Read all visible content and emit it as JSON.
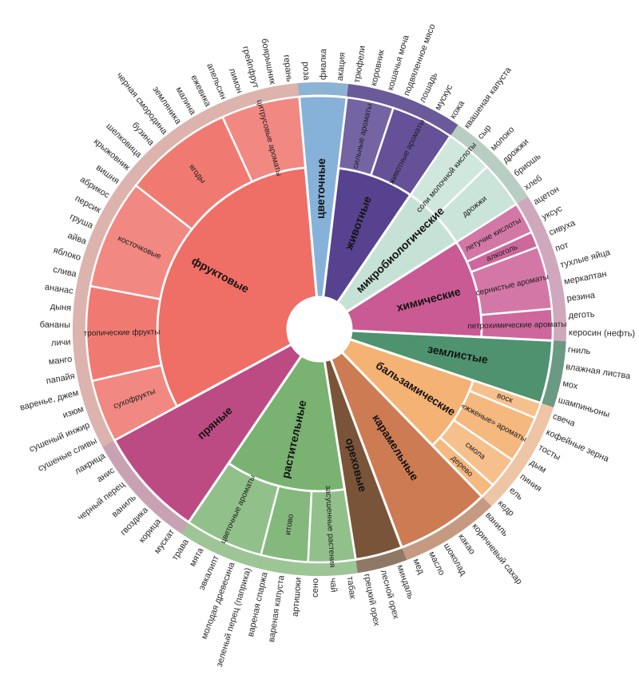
{
  "colors": {
    "background": "#ffffff",
    "hole": "#ffffff",
    "rim": "#c2a9b5"
  },
  "wheel": {
    "categories": [
      {
        "name": "цветочные",
        "color": "#86b2da",
        "rim": "#8db3d4",
        "subs": [],
        "leaves": [
          "роза",
          "фиалка",
          "акация"
        ]
      },
      {
        "name": "животные",
        "color": "#56428f",
        "rim": "#6a5a99",
        "subs": [
          {
            "name": "сильные ароматы",
            "leaves": [
              "трюфели",
              "коровник",
              "кошачья моча"
            ]
          },
          {
            "name": "животные ароматы",
            "leaves": [
              "подвяленное мясо",
              "лошадь",
              "мускус",
              "кожа"
            ]
          }
        ],
        "leaves": []
      },
      {
        "name": "микробиологические",
        "color": "#c6e2d6",
        "rim": "#b8cec2",
        "subs": [
          {
            "name": "соли молочной кислоты",
            "leaves": [
              "квашеная капуста",
              "сыр",
              "молоко"
            ]
          },
          {
            "name": "дрожжи",
            "leaves": [
              "дрожжи",
              "бриошь",
              "хлеб"
            ]
          }
        ],
        "leaves": []
      },
      {
        "name": "химические",
        "color": "#c95a93",
        "rim": "#cfa8bd",
        "subs": [
          {
            "name": "летучие кислоты",
            "leaves": [
              "ацетон",
              "уксус"
            ]
          },
          {
            "name": "алкоголь",
            "leaves": [
              "сивуха"
            ]
          },
          {
            "name": "сернистые ароматы",
            "leaves": [
              "пот",
              "тухлые яйца",
              "меркаптан",
              "резина"
            ]
          },
          {
            "name": "петрохими­ческие аро­маты",
            "leaves": [
              "деготь",
              "керосин (нефть)"
            ]
          }
        ],
        "leaves": []
      },
      {
        "name": "землистые",
        "color": "#4e9270",
        "rim": "#6a9a82",
        "subs": [],
        "leaves": [
          "гниль",
          "влажная листва",
          "мох",
          "шампиньоны"
        ]
      },
      {
        "name": "бальзамические",
        "color": "#f4b274",
        "rim": "#eec5a5",
        "subs": [
          {
            "name": "воск",
            "leaves": [
              "свеча"
            ]
          },
          {
            "name": "«жженые» ароматы",
            "leaves": [
              "кофейные зерна",
              "тосты",
              "дым"
            ]
          },
          {
            "name": "смола",
            "leaves": [
              "пиния",
              "ель"
            ]
          },
          {
            "name": "дерево",
            "leaves": [
              "кедр"
            ]
          }
        ],
        "leaves": []
      },
      {
        "name": "карамельные",
        "color": "#cd7b52",
        "rim": "#c59a80",
        "subs": [],
        "leaves": [
          "ваниль",
          "коричневый сахар",
          "какао",
          "шоколад",
          "масло",
          "мед"
        ]
      },
      {
        "name": "ореховые",
        "color": "#7a5438",
        "rim": "#8f7866",
        "subs": [],
        "leaves": [
          "миндаль",
          "лесной орех",
          "грецкий орех"
        ]
      },
      {
        "name": "растительные",
        "color": "#79b271",
        "rim": "#9ec596",
        "subs": [
          {
            "name": "засушен­ные расте­ния",
            "leaves": [
              "табак",
              "чай",
              "сено"
            ]
          },
          {
            "name": "итово",
            "leaves": [
              "артишоки",
              "вареная капуста",
              "вареная спаржа"
            ]
          },
          {
            "name": "цветочные ароматы",
            "leaves": [
              "зеленый перец (паприка)",
              "молодая древесина",
              "эвкалипт",
              "мята",
              "трава"
            ]
          }
        ],
        "leaves": []
      },
      {
        "name": "пряные",
        "color": "#bd4b83",
        "rim": "#c8a2b3",
        "subs": [],
        "leaves": [
          "мускат",
          "корица",
          "гвоздика",
          "ваниль",
          "черный перец",
          "анис",
          "лакрица"
        ]
      },
      {
        "name": "фруктовые",
        "color": "#ef6e66",
        "rim": "#dcb3ad",
        "subs": [
          {
            "name": "сухофрукты",
            "leaves": [
              "сушеные сливы",
              "сушеный инжир",
              "изюм",
              "варенье, джем"
            ]
          },
          {
            "name": "тропи­ческие фрукты",
            "leaves": [
              "папайя",
              "манго",
              "личи",
              "бананы",
              "дыня",
              "ананас"
            ]
          },
          {
            "name": "косточ­ковые",
            "leaves": [
              "слива",
              "яблоко",
              "айва",
              "груша",
              "персик",
              "абрикос",
              "вишня"
            ]
          },
          {
            "name": "ягоды",
            "leaves": [
              "крыжовник",
              "шелковица",
              "бузина",
              "черная смородина",
              "земляника",
              "малина",
              "ежевика"
            ]
          },
          {
            "name": "цитрусовые ароматы",
            "leaves": [
              "апельсин",
              "лимон",
              "грейпфрут",
              "боярышник",
              "герань"
            ]
          }
        ],
        "leaves": []
      }
    ]
  }
}
